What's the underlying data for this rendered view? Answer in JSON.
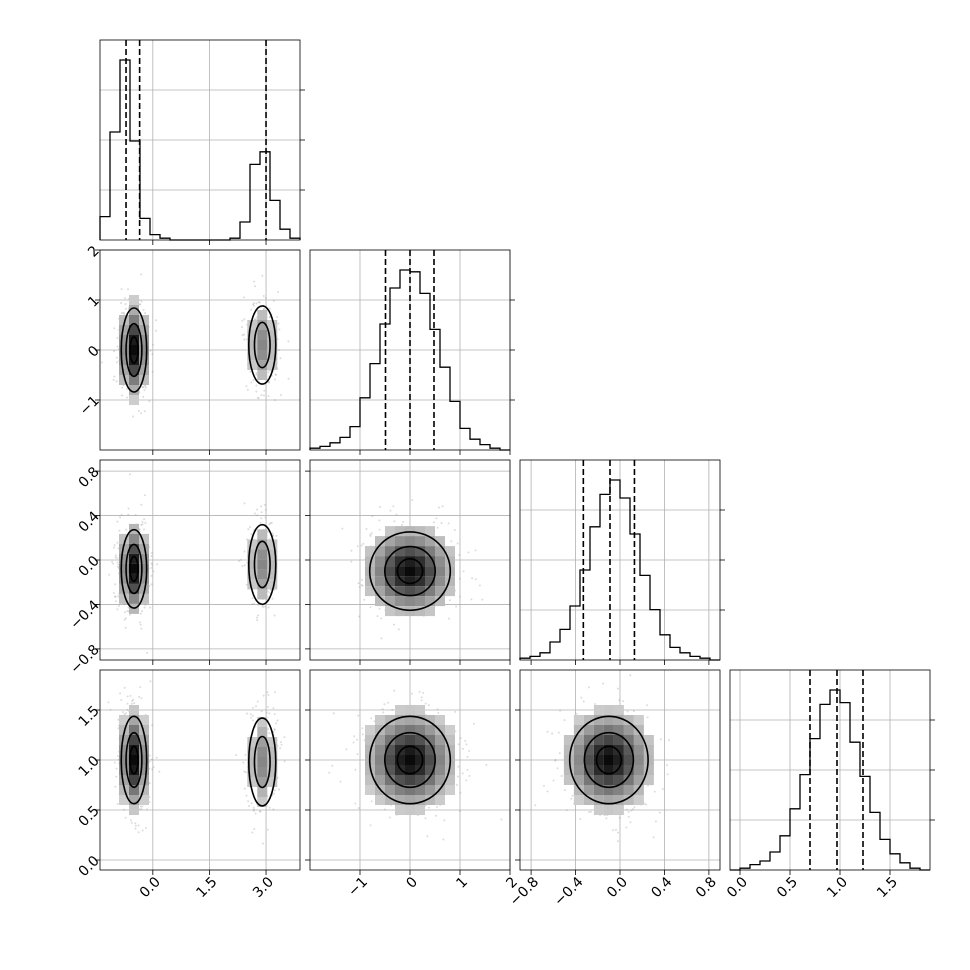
{
  "chart_data": {
    "type": "corner",
    "n_params": 4,
    "grid": true,
    "params": [
      {
        "index": 0,
        "range": [
          -1.4,
          3.9
        ],
        "ticks": [
          0.0,
          1.5,
          3.0
        ],
        "tick_labels": [
          "0.0",
          "1.5",
          "3.0"
        ],
        "hist": {
          "bin_edges": [
            -1.4,
            -1.135,
            -0.87,
            -0.605,
            -0.34,
            -0.075,
            0.19,
            0.455,
            0.72,
            0.985,
            1.25,
            1.515,
            1.78,
            2.045,
            2.31,
            2.575,
            2.84,
            3.105,
            3.37,
            3.635,
            3.9
          ],
          "counts": [
            0.13,
            0.6,
            1.0,
            0.55,
            0.12,
            0.03,
            0.01,
            0.0,
            0.0,
            0.0,
            0.0,
            0.0,
            0.0,
            0.01,
            0.1,
            0.42,
            0.49,
            0.22,
            0.06,
            0.01
          ]
        },
        "quantiles": [
          -0.71,
          -0.35,
          3.0
        ]
      },
      {
        "index": 1,
        "range": [
          -2.0,
          2.0
        ],
        "ticks": [
          -1,
          0,
          1,
          2
        ],
        "tick_labels": [
          "−1",
          "0",
          "1",
          "2"
        ],
        "hist": {
          "bin_edges": [
            -2.0,
            -1.8,
            -1.6,
            -1.4,
            -1.2,
            -1.0,
            -0.8,
            -0.6,
            -0.4,
            -0.2,
            0.0,
            0.2,
            0.4,
            0.6,
            0.8,
            1.0,
            1.2,
            1.4,
            1.6,
            1.8,
            2.0
          ],
          "counts": [
            0.01,
            0.02,
            0.04,
            0.07,
            0.13,
            0.29,
            0.48,
            0.7,
            0.9,
            1.0,
            0.99,
            0.87,
            0.67,
            0.46,
            0.27,
            0.12,
            0.06,
            0.03,
            0.01,
            0.0
          ]
        },
        "quantiles": [
          -0.49,
          0.0,
          0.48
        ]
      },
      {
        "index": 2,
        "range": [
          -0.9,
          0.9
        ],
        "ticks": [
          -0.8,
          -0.4,
          0.0,
          0.4,
          0.8
        ],
        "tick_labels": [
          "−0.8",
          "−0.4",
          "0.0",
          "0.4",
          "0.8"
        ],
        "hist": {
          "bin_edges": [
            -0.9,
            -0.81,
            -0.72,
            -0.63,
            -0.54,
            -0.45,
            -0.36,
            -0.27,
            -0.18,
            -0.09,
            0.0,
            0.09,
            0.18,
            0.27,
            0.36,
            0.45,
            0.54,
            0.63,
            0.72,
            0.81,
            0.9
          ],
          "counts": [
            0.01,
            0.02,
            0.04,
            0.1,
            0.17,
            0.3,
            0.5,
            0.74,
            0.92,
            1.0,
            0.9,
            0.7,
            0.47,
            0.28,
            0.14,
            0.07,
            0.04,
            0.02,
            0.01,
            0.0
          ]
        },
        "quantiles": [
          -0.33,
          -0.09,
          0.13
        ]
      },
      {
        "index": 3,
        "range": [
          -0.1,
          1.9
        ],
        "ticks": [
          0.0,
          0.5,
          1.0,
          1.5
        ],
        "tick_labels": [
          "0.0",
          "0.5",
          "1.0",
          "1.5"
        ],
        "hist": {
          "bin_edges": [
            -0.1,
            0.0,
            0.1,
            0.2,
            0.3,
            0.4,
            0.5,
            0.6,
            0.7,
            0.8,
            0.9,
            1.0,
            1.1,
            1.2,
            1.3,
            1.4,
            1.5,
            1.6,
            1.7,
            1.8,
            1.9
          ],
          "counts": [
            0.0,
            0.01,
            0.03,
            0.05,
            0.1,
            0.19,
            0.34,
            0.53,
            0.73,
            0.92,
            1.0,
            0.93,
            0.71,
            0.52,
            0.32,
            0.17,
            0.09,
            0.04,
            0.01,
            0.0
          ]
        },
        "quantiles": [
          0.7,
          0.97,
          1.23
        ]
      }
    ],
    "pairs": [
      {
        "x": 0,
        "y": 1,
        "modes": [
          {
            "center": [
              -0.5,
              0.0
            ],
            "sx": 0.2,
            "sy": 0.5,
            "weight": 1.0,
            "contours": 3
          },
          {
            "center": [
              2.9,
              0.1
            ],
            "sx": 0.22,
            "sy": 0.48,
            "weight": 0.45,
            "contours": 2
          }
        ]
      },
      {
        "x": 0,
        "y": 2,
        "modes": [
          {
            "center": [
              -0.5,
              -0.08
            ],
            "sx": 0.2,
            "sy": 0.21,
            "weight": 1.0,
            "contours": 3
          },
          {
            "center": [
              2.9,
              -0.04
            ],
            "sx": 0.22,
            "sy": 0.22,
            "weight": 0.45,
            "contours": 2
          }
        ]
      },
      {
        "x": 0,
        "y": 3,
        "modes": [
          {
            "center": [
              -0.5,
              1.0
            ],
            "sx": 0.2,
            "sy": 0.26,
            "weight": 1.0,
            "contours": 3
          },
          {
            "center": [
              2.9,
              0.98
            ],
            "sx": 0.22,
            "sy": 0.27,
            "weight": 0.45,
            "contours": 2
          }
        ]
      },
      {
        "x": 1,
        "y": 2,
        "modes": [
          {
            "center": [
              0.0,
              -0.1
            ],
            "sx": 0.48,
            "sy": 0.21,
            "weight": 1.0,
            "contours": 3
          }
        ]
      },
      {
        "x": 1,
        "y": 3,
        "modes": [
          {
            "center": [
              0.0,
              1.0
            ],
            "sx": 0.48,
            "sy": 0.26,
            "weight": 1.0,
            "contours": 3
          }
        ]
      },
      {
        "x": 2,
        "y": 3,
        "modes": [
          {
            "center": [
              -0.1,
              1.0
            ],
            "sx": 0.21,
            "sy": 0.26,
            "weight": 1.0,
            "contours": 3
          }
        ]
      }
    ]
  }
}
